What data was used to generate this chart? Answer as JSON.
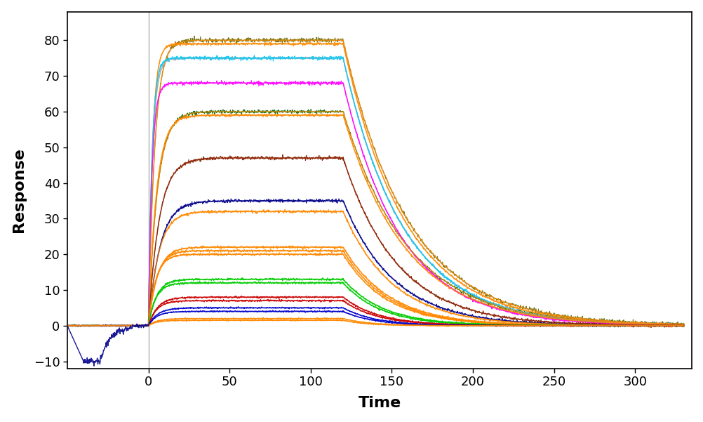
{
  "xlabel": "Time",
  "ylabel": "Response",
  "xlim": [
    -50,
    335
  ],
  "ylim": [
    -12,
    88
  ],
  "xticks": [
    0,
    50,
    100,
    150,
    200,
    250,
    300
  ],
  "yticks": [
    -10,
    0,
    10,
    20,
    30,
    40,
    50,
    60,
    70,
    80
  ],
  "vline_x": 0,
  "association_start": 0,
  "association_end": 120,
  "dissociation_end": 330,
  "pre_start": -50,
  "background_color": "#ffffff",
  "series": [
    {
      "rmax": 80,
      "ka": 0.25,
      "kd": 0.025,
      "color": "#6b6b00",
      "noise": 0.8,
      "fit_color": "#ff8800"
    },
    {
      "rmax": 79,
      "ka": 0.4,
      "kd": 0.026,
      "color": "#ff8800",
      "noise": 0.5,
      "fit_color": "#ff8800"
    },
    {
      "rmax": 75,
      "ka": 0.4,
      "kd": 0.027,
      "color": "#aaaaaa",
      "noise": 0.5,
      "fit_color": "#aaaaaa"
    },
    {
      "rmax": 75,
      "ka": 0.45,
      "kd": 0.027,
      "color": "#00ccff",
      "noise": 0.7,
      "fit_color": "#00ccff"
    },
    {
      "rmax": 68,
      "ka": 0.45,
      "kd": 0.028,
      "color": "#ff00ff",
      "noise": 0.6,
      "fit_color": "#ff00ff"
    },
    {
      "rmax": 60,
      "ka": 0.18,
      "kd": 0.025,
      "color": "#006400",
      "noise": 0.6,
      "fit_color": "#ff8800"
    },
    {
      "rmax": 59,
      "ka": 0.2,
      "kd": 0.026,
      "color": "#ff8800",
      "noise": 0.5,
      "fit_color": "#ff8800"
    },
    {
      "rmax": 47,
      "ka": 0.15,
      "kd": 0.03,
      "color": "#8b2000",
      "noise": 0.6,
      "fit_color": "#8b2000"
    },
    {
      "rmax": 35,
      "ka": 0.14,
      "kd": 0.032,
      "color": "#00008b",
      "noise": 0.6,
      "fit_color": "#00008b"
    },
    {
      "rmax": 32,
      "ka": 0.16,
      "kd": 0.033,
      "color": "#ff8800",
      "noise": 0.5,
      "fit_color": "#ff8800"
    },
    {
      "rmax": 22,
      "ka": 0.18,
      "kd": 0.035,
      "color": "#ff8800",
      "noise": 0.45,
      "fit_color": "#ff8800"
    },
    {
      "rmax": 21,
      "ka": 0.2,
      "kd": 0.036,
      "color": "#ff8800",
      "noise": 0.45,
      "fit_color": "#ff8800"
    },
    {
      "rmax": 20,
      "ka": 0.22,
      "kd": 0.037,
      "color": "#ff8800",
      "noise": 0.45,
      "fit_color": "#ff8800"
    },
    {
      "rmax": 13,
      "ka": 0.2,
      "kd": 0.04,
      "color": "#00cc00",
      "noise": 0.4,
      "fit_color": "#00cc00"
    },
    {
      "rmax": 12,
      "ka": 0.22,
      "kd": 0.042,
      "color": "#00cc00",
      "noise": 0.4,
      "fit_color": "#00cc00"
    },
    {
      "rmax": 8,
      "ka": 0.18,
      "kd": 0.045,
      "color": "#cc0000",
      "noise": 0.35,
      "fit_color": "#cc0000"
    },
    {
      "rmax": 7,
      "ka": 0.2,
      "kd": 0.046,
      "color": "#cc0000",
      "noise": 0.35,
      "fit_color": "#cc0000"
    },
    {
      "rmax": 5,
      "ka": 0.18,
      "kd": 0.05,
      "color": "#0000cc",
      "noise": 0.3,
      "fit_color": "#0000cc"
    },
    {
      "rmax": 4,
      "ka": 0.2,
      "kd": 0.052,
      "color": "#0000cc",
      "noise": 0.3,
      "fit_color": "#0000cc"
    },
    {
      "rmax": 2,
      "ka": 0.18,
      "kd": 0.06,
      "color": "#ff8800",
      "noise": 0.25,
      "fit_color": "#ff8800"
    },
    {
      "rmax": 1.5,
      "ka": 0.2,
      "kd": 0.065,
      "color": "#ff8800",
      "noise": 0.25,
      "fit_color": "#ff8800"
    }
  ]
}
